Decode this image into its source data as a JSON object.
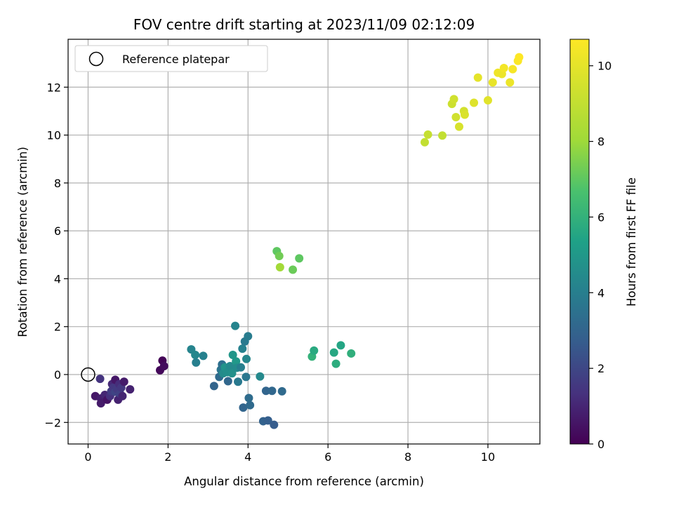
{
  "chart_data": {
    "type": "scatter",
    "title": "FOV centre drift starting at 2023/11/09 02:12:09",
    "xlabel": "Angular distance from reference (arcmin)",
    "ylabel": "Rotation from reference (arcmin)",
    "colorbar_label": "Hours from first FF file",
    "colormap": "viridis",
    "xlim": [
      -0.5,
      11.3
    ],
    "ylim": [
      -2.9,
      14.0
    ],
    "clim": [
      0,
      10.7
    ],
    "xticks": [
      0,
      2,
      4,
      6,
      8,
      10
    ],
    "xtick_labels": [
      "0",
      "2",
      "4",
      "6",
      "8",
      "10"
    ],
    "yticks": [
      -2,
      0,
      2,
      4,
      6,
      8,
      10,
      12
    ],
    "ytick_labels": [
      "−2",
      "0",
      "2",
      "4",
      "6",
      "8",
      "10",
      "12"
    ],
    "cticks": [
      0,
      2,
      4,
      6,
      8,
      10
    ],
    "ctick_labels": [
      "0",
      "2",
      "4",
      "6",
      "8",
      "10"
    ],
    "grid": true,
    "legend": {
      "placement": "top-left",
      "entries": [
        "Reference platepar"
      ]
    },
    "reference_point": {
      "x": 0,
      "y": 0
    },
    "points": [
      {
        "x": 0.18,
        "y": -0.9,
        "c": 0.6
      },
      {
        "x": 0.3,
        "y": -0.18,
        "c": 1.4
      },
      {
        "x": 0.32,
        "y": -1.0,
        "c": 0.8
      },
      {
        "x": 0.32,
        "y": -1.2,
        "c": 0.7
      },
      {
        "x": 0.42,
        "y": -0.85,
        "c": 1.0
      },
      {
        "x": 0.48,
        "y": -1.05,
        "c": 0.5
      },
      {
        "x": 0.55,
        "y": -0.9,
        "c": 1.3
      },
      {
        "x": 0.58,
        "y": -0.7,
        "c": 1.7
      },
      {
        "x": 0.6,
        "y": -0.4,
        "c": 1.1
      },
      {
        "x": 0.63,
        "y": -0.55,
        "c": 1.5
      },
      {
        "x": 0.68,
        "y": -0.22,
        "c": 0.6
      },
      {
        "x": 0.68,
        "y": -0.72,
        "c": 1.9
      },
      {
        "x": 0.72,
        "y": -0.6,
        "c": 1.6
      },
      {
        "x": 0.75,
        "y": -1.05,
        "c": 0.9
      },
      {
        "x": 0.78,
        "y": -0.4,
        "c": 1.2
      },
      {
        "x": 0.8,
        "y": -0.8,
        "c": 1.8
      },
      {
        "x": 0.83,
        "y": -0.55,
        "c": 1.5
      },
      {
        "x": 0.86,
        "y": -0.9,
        "c": 1.0
      },
      {
        "x": 0.9,
        "y": -0.3,
        "c": 0.7
      },
      {
        "x": 1.05,
        "y": -0.62,
        "c": 0.9
      },
      {
        "x": 1.8,
        "y": 0.18,
        "c": 0.2
      },
      {
        "x": 1.86,
        "y": 0.58,
        "c": 0.1
      },
      {
        "x": 1.9,
        "y": 0.35,
        "c": 0.3
      },
      {
        "x": 2.58,
        "y": 1.05,
        "c": 4.2
      },
      {
        "x": 2.68,
        "y": 0.82,
        "c": 4.3
      },
      {
        "x": 2.7,
        "y": 0.5,
        "c": 4.0
      },
      {
        "x": 2.88,
        "y": 0.78,
        "c": 4.1
      },
      {
        "x": 3.15,
        "y": -0.48,
        "c": 3.0
      },
      {
        "x": 3.28,
        "y": -0.1,
        "c": 3.2
      },
      {
        "x": 3.32,
        "y": 0.2,
        "c": 3.6
      },
      {
        "x": 3.35,
        "y": 0.42,
        "c": 3.4
      },
      {
        "x": 3.38,
        "y": 0.05,
        "c": 4.5
      },
      {
        "x": 3.42,
        "y": 0.3,
        "c": 4.8
      },
      {
        "x": 3.48,
        "y": 0.1,
        "c": 4.6
      },
      {
        "x": 3.5,
        "y": -0.28,
        "c": 3.1
      },
      {
        "x": 3.55,
        "y": 0.35,
        "c": 4.4
      },
      {
        "x": 3.6,
        "y": 0.05,
        "c": 4.7
      },
      {
        "x": 3.62,
        "y": 0.82,
        "c": 4.9
      },
      {
        "x": 3.68,
        "y": 2.03,
        "c": 4.2
      },
      {
        "x": 3.7,
        "y": 0.55,
        "c": 5.0
      },
      {
        "x": 3.72,
        "y": 0.28,
        "c": 4.5
      },
      {
        "x": 3.75,
        "y": -0.3,
        "c": 3.8
      },
      {
        "x": 3.82,
        "y": 0.3,
        "c": 4.0
      },
      {
        "x": 3.86,
        "y": 1.08,
        "c": 4.1
      },
      {
        "x": 3.88,
        "y": -1.38,
        "c": 3.0
      },
      {
        "x": 3.92,
        "y": 1.38,
        "c": 3.8
      },
      {
        "x": 3.95,
        "y": -0.1,
        "c": 3.7
      },
      {
        "x": 3.96,
        "y": 0.65,
        "c": 4.3
      },
      {
        "x": 4.0,
        "y": 1.6,
        "c": 3.9
      },
      {
        "x": 4.02,
        "y": -0.98,
        "c": 3.3
      },
      {
        "x": 4.05,
        "y": -1.28,
        "c": 3.2
      },
      {
        "x": 4.3,
        "y": -0.08,
        "c": 4.4
      },
      {
        "x": 4.38,
        "y": -1.95,
        "c": 2.9
      },
      {
        "x": 4.45,
        "y": -0.68,
        "c": 3.0
      },
      {
        "x": 4.5,
        "y": -1.92,
        "c": 2.8
      },
      {
        "x": 4.6,
        "y": -0.68,
        "c": 3.1
      },
      {
        "x": 4.65,
        "y": -2.1,
        "c": 2.7
      },
      {
        "x": 4.85,
        "y": -0.7,
        "c": 3.2
      },
      {
        "x": 4.72,
        "y": 5.15,
        "c": 7.0
      },
      {
        "x": 4.78,
        "y": 4.95,
        "c": 7.3
      },
      {
        "x": 4.8,
        "y": 4.48,
        "c": 8.1
      },
      {
        "x": 5.12,
        "y": 4.38,
        "c": 7.2
      },
      {
        "x": 5.28,
        "y": 4.85,
        "c": 7.0
      },
      {
        "x": 5.6,
        "y": 0.75,
        "c": 6.0
      },
      {
        "x": 5.65,
        "y": 1.0,
        "c": 5.7
      },
      {
        "x": 6.15,
        "y": 0.92,
        "c": 5.6
      },
      {
        "x": 6.2,
        "y": 0.45,
        "c": 5.8
      },
      {
        "x": 6.32,
        "y": 1.22,
        "c": 5.5
      },
      {
        "x": 6.58,
        "y": 0.88,
        "c": 5.9
      },
      {
        "x": 8.42,
        "y": 9.7,
        "c": 9.0
      },
      {
        "x": 8.5,
        "y": 10.02,
        "c": 9.1
      },
      {
        "x": 8.86,
        "y": 9.98,
        "c": 9.0
      },
      {
        "x": 9.1,
        "y": 11.3,
        "c": 9.3
      },
      {
        "x": 9.15,
        "y": 11.5,
        "c": 9.4
      },
      {
        "x": 9.2,
        "y": 10.75,
        "c": 9.4
      },
      {
        "x": 9.28,
        "y": 10.35,
        "c": 9.6
      },
      {
        "x": 9.4,
        "y": 11.0,
        "c": 9.5
      },
      {
        "x": 9.42,
        "y": 10.85,
        "c": 9.7
      },
      {
        "x": 9.65,
        "y": 11.35,
        "c": 9.8
      },
      {
        "x": 9.75,
        "y": 12.4,
        "c": 10.0
      },
      {
        "x": 10.0,
        "y": 11.45,
        "c": 9.9
      },
      {
        "x": 10.12,
        "y": 12.2,
        "c": 10.1
      },
      {
        "x": 10.25,
        "y": 12.6,
        "c": 10.3
      },
      {
        "x": 10.35,
        "y": 12.55,
        "c": 10.2
      },
      {
        "x": 10.4,
        "y": 12.8,
        "c": 10.4
      },
      {
        "x": 10.55,
        "y": 12.2,
        "c": 10.2
      },
      {
        "x": 10.62,
        "y": 12.75,
        "c": 10.5
      },
      {
        "x": 10.75,
        "y": 13.1,
        "c": 10.6
      },
      {
        "x": 10.78,
        "y": 13.25,
        "c": 10.7
      }
    ]
  }
}
